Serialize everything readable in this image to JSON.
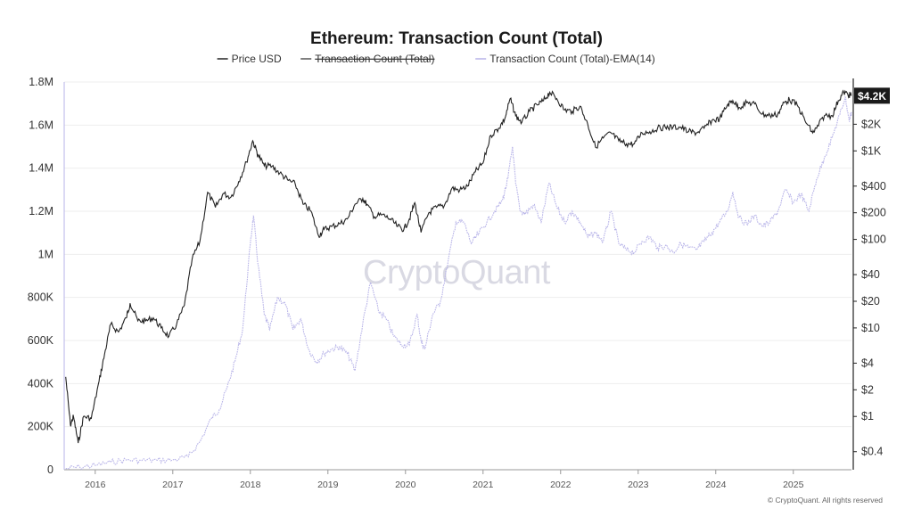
{
  "chart_data": {
    "type": "line",
    "title": "Ethereum: Transaction Count (Total)",
    "legend": [
      {
        "name": "Price USD",
        "color": "#222222",
        "style": "solid",
        "strikethrough": false
      },
      {
        "name": "Transaction Count (Total)",
        "color": "#555555",
        "style": "solid",
        "strikethrough": true
      },
      {
        "name": "Transaction Count (Total)-EMA(14)",
        "color": "#b7b3e8",
        "style": "solid",
        "strikethrough": false
      }
    ],
    "legend_position": "top-center",
    "watermark": "CryptoQuant",
    "copyright": "© CryptoQuant. All rights reserved",
    "current_price_label": "$4.2K",
    "x_axis": {
      "ticks": [
        "2016",
        "2017",
        "2018",
        "2019",
        "2020",
        "2021",
        "2022",
        "2023",
        "2024",
        "2025"
      ],
      "range": [
        2015.6,
        2025.75
      ]
    },
    "y_left": {
      "ticks": [
        {
          "value": 0,
          "label": "0"
        },
        {
          "value": 200000,
          "label": "200K"
        },
        {
          "value": 400000,
          "label": "400K"
        },
        {
          "value": 600000,
          "label": "600K"
        },
        {
          "value": 800000,
          "label": "800K"
        },
        {
          "value": 1000000,
          "label": "1M"
        },
        {
          "value": 1200000,
          "label": "1.2M"
        },
        {
          "value": 1400000,
          "label": "1.4M"
        },
        {
          "value": 1600000,
          "label": "1.6M"
        },
        {
          "value": 1800000,
          "label": "1.8M"
        }
      ],
      "range": [
        0,
        1800000
      ]
    },
    "y_right": {
      "scale": "log",
      "ticks": [
        {
          "value": 0.4,
          "label": "$0.4"
        },
        {
          "value": 1,
          "label": "$1"
        },
        {
          "value": 2,
          "label": "$2"
        },
        {
          "value": 4,
          "label": "$4"
        },
        {
          "value": 10,
          "label": "$10"
        },
        {
          "value": 20,
          "label": "$20"
        },
        {
          "value": 40,
          "label": "$40"
        },
        {
          "value": 100,
          "label": "$100"
        },
        {
          "value": 200,
          "label": "$200"
        },
        {
          "value": 400,
          "label": "$400"
        },
        {
          "value": 1000,
          "label": "$1K"
        },
        {
          "value": 2000,
          "label": "$2K"
        }
      ],
      "range": [
        0.25,
        6000
      ]
    },
    "series": [
      {
        "name": "Transaction Count (Total)-EMA(14)",
        "axis": "left",
        "color": "#b7b3e8",
        "points": [
          [
            2015.62,
            5000
          ],
          [
            2015.8,
            12000
          ],
          [
            2016.0,
            20000
          ],
          [
            2016.2,
            35000
          ],
          [
            2016.4,
            45000
          ],
          [
            2016.6,
            43000
          ],
          [
            2016.8,
            44000
          ],
          [
            2017.0,
            45000
          ],
          [
            2017.2,
            60000
          ],
          [
            2017.35,
            130000
          ],
          [
            2017.5,
            240000
          ],
          [
            2017.6,
            280000
          ],
          [
            2017.7,
            380000
          ],
          [
            2017.8,
            500000
          ],
          [
            2017.9,
            650000
          ],
          [
            2018.0,
            1050000
          ],
          [
            2018.04,
            1180000
          ],
          [
            2018.1,
            950000
          ],
          [
            2018.18,
            720000
          ],
          [
            2018.25,
            650000
          ],
          [
            2018.35,
            800000
          ],
          [
            2018.45,
            770000
          ],
          [
            2018.55,
            650000
          ],
          [
            2018.65,
            700000
          ],
          [
            2018.75,
            560000
          ],
          [
            2018.85,
            500000
          ],
          [
            2018.95,
            540000
          ],
          [
            2019.05,
            560000
          ],
          [
            2019.15,
            570000
          ],
          [
            2019.25,
            540000
          ],
          [
            2019.35,
            460000
          ],
          [
            2019.45,
            680000
          ],
          [
            2019.55,
            870000
          ],
          [
            2019.65,
            740000
          ],
          [
            2019.75,
            700000
          ],
          [
            2019.85,
            620000
          ],
          [
            2019.95,
            580000
          ],
          [
            2020.05,
            580000
          ],
          [
            2020.15,
            720000
          ],
          [
            2020.2,
            600000
          ],
          [
            2020.25,
            560000
          ],
          [
            2020.35,
            720000
          ],
          [
            2020.45,
            780000
          ],
          [
            2020.55,
            970000
          ],
          [
            2020.65,
            1150000
          ],
          [
            2020.75,
            1150000
          ],
          [
            2020.85,
            1050000
          ],
          [
            2020.95,
            1100000
          ],
          [
            2021.05,
            1150000
          ],
          [
            2021.15,
            1200000
          ],
          [
            2021.25,
            1250000
          ],
          [
            2021.32,
            1350000
          ],
          [
            2021.38,
            1500000
          ],
          [
            2021.42,
            1330000
          ],
          [
            2021.48,
            1200000
          ],
          [
            2021.55,
            1190000
          ],
          [
            2021.65,
            1230000
          ],
          [
            2021.75,
            1150000
          ],
          [
            2021.85,
            1330000
          ],
          [
            2021.95,
            1220000
          ],
          [
            2022.05,
            1150000
          ],
          [
            2022.15,
            1200000
          ],
          [
            2022.25,
            1150000
          ],
          [
            2022.35,
            1080000
          ],
          [
            2022.45,
            1100000
          ],
          [
            2022.55,
            1060000
          ],
          [
            2022.65,
            1200000
          ],
          [
            2022.75,
            1050000
          ],
          [
            2022.85,
            1020000
          ],
          [
            2022.95,
            1010000
          ],
          [
            2023.05,
            1060000
          ],
          [
            2023.15,
            1080000
          ],
          [
            2023.25,
            1030000
          ],
          [
            2023.35,
            1040000
          ],
          [
            2023.45,
            1010000
          ],
          [
            2023.55,
            1050000
          ],
          [
            2023.65,
            1030000
          ],
          [
            2023.75,
            1020000
          ],
          [
            2023.85,
            1060000
          ],
          [
            2023.95,
            1100000
          ],
          [
            2024.05,
            1150000
          ],
          [
            2024.15,
            1200000
          ],
          [
            2024.22,
            1290000
          ],
          [
            2024.3,
            1170000
          ],
          [
            2024.4,
            1140000
          ],
          [
            2024.5,
            1180000
          ],
          [
            2024.6,
            1130000
          ],
          [
            2024.7,
            1150000
          ],
          [
            2024.8,
            1200000
          ],
          [
            2024.9,
            1300000
          ],
          [
            2025.0,
            1240000
          ],
          [
            2025.1,
            1280000
          ],
          [
            2025.2,
            1200000
          ],
          [
            2025.3,
            1350000
          ],
          [
            2025.4,
            1450000
          ],
          [
            2025.5,
            1540000
          ],
          [
            2025.6,
            1650000
          ],
          [
            2025.67,
            1730000
          ],
          [
            2025.72,
            1620000
          ],
          [
            2025.75,
            1660000
          ]
        ]
      },
      {
        "name": "Price USD",
        "axis": "right",
        "color": "#222222",
        "points": [
          [
            2015.62,
            2.8
          ],
          [
            2015.68,
            0.8
          ],
          [
            2015.72,
            1.0
          ],
          [
            2015.78,
            0.5
          ],
          [
            2015.85,
            1.0
          ],
          [
            2015.95,
            0.95
          ],
          [
            2016.05,
            2.5
          ],
          [
            2016.12,
            5
          ],
          [
            2016.2,
            11
          ],
          [
            2016.3,
            9
          ],
          [
            2016.4,
            13
          ],
          [
            2016.45,
            19
          ],
          [
            2016.55,
            12
          ],
          [
            2016.65,
            12
          ],
          [
            2016.75,
            13
          ],
          [
            2016.85,
            10
          ],
          [
            2016.95,
            8
          ],
          [
            2017.05,
            11
          ],
          [
            2017.15,
            18
          ],
          [
            2017.25,
            60
          ],
          [
            2017.35,
            95
          ],
          [
            2017.45,
            340
          ],
          [
            2017.55,
            230
          ],
          [
            2017.65,
            330
          ],
          [
            2017.75,
            300
          ],
          [
            2017.85,
            450
          ],
          [
            2017.95,
            750
          ],
          [
            2018.03,
            1300
          ],
          [
            2018.1,
            900
          ],
          [
            2018.18,
            680
          ],
          [
            2018.28,
            670
          ],
          [
            2018.38,
            560
          ],
          [
            2018.48,
            470
          ],
          [
            2018.58,
            420
          ],
          [
            2018.68,
            250
          ],
          [
            2018.78,
            210
          ],
          [
            2018.88,
            110
          ],
          [
            2018.95,
            130
          ],
          [
            2019.05,
            140
          ],
          [
            2019.15,
            150
          ],
          [
            2019.25,
            170
          ],
          [
            2019.35,
            250
          ],
          [
            2019.45,
            290
          ],
          [
            2019.5,
            250
          ],
          [
            2019.6,
            180
          ],
          [
            2019.7,
            190
          ],
          [
            2019.8,
            170
          ],
          [
            2019.9,
            140
          ],
          [
            2019.98,
            130
          ],
          [
            2020.05,
            170
          ],
          [
            2020.12,
            260
          ],
          [
            2020.2,
            120
          ],
          [
            2020.3,
            200
          ],
          [
            2020.4,
            230
          ],
          [
            2020.5,
            240
          ],
          [
            2020.6,
            380
          ],
          [
            2020.7,
            360
          ],
          [
            2020.8,
            400
          ],
          [
            2020.9,
            580
          ],
          [
            2021.0,
            730
          ],
          [
            2021.1,
            1500
          ],
          [
            2021.2,
            1800
          ],
          [
            2021.28,
            2300
          ],
          [
            2021.35,
            3900
          ],
          [
            2021.42,
            2500
          ],
          [
            2021.5,
            2100
          ],
          [
            2021.6,
            2800
          ],
          [
            2021.7,
            3300
          ],
          [
            2021.78,
            3700
          ],
          [
            2021.86,
            4600
          ],
          [
            2021.95,
            3900
          ],
          [
            2022.05,
            2900
          ],
          [
            2022.15,
            2800
          ],
          [
            2022.25,
            3200
          ],
          [
            2022.35,
            2000
          ],
          [
            2022.45,
            1100
          ],
          [
            2022.55,
            1400
          ],
          [
            2022.65,
            1600
          ],
          [
            2022.75,
            1300
          ],
          [
            2022.85,
            1200
          ],
          [
            2022.95,
            1200
          ],
          [
            2023.05,
            1600
          ],
          [
            2023.15,
            1650
          ],
          [
            2023.25,
            1800
          ],
          [
            2023.35,
            1850
          ],
          [
            2023.45,
            1850
          ],
          [
            2023.55,
            1850
          ],
          [
            2023.65,
            1650
          ],
          [
            2023.75,
            1600
          ],
          [
            2023.85,
            1800
          ],
          [
            2023.95,
            2200
          ],
          [
            2024.05,
            2300
          ],
          [
            2024.15,
            3300
          ],
          [
            2024.22,
            3700
          ],
          [
            2024.3,
            3100
          ],
          [
            2024.4,
            3500
          ],
          [
            2024.5,
            3400
          ],
          [
            2024.6,
            2600
          ],
          [
            2024.7,
            2500
          ],
          [
            2024.8,
            2600
          ],
          [
            2024.88,
            3500
          ],
          [
            2024.95,
            3800
          ],
          [
            2025.05,
            3300
          ],
          [
            2025.15,
            2200
          ],
          [
            2025.25,
            1600
          ],
          [
            2025.3,
            1800
          ],
          [
            2025.4,
            2500
          ],
          [
            2025.5,
            2500
          ],
          [
            2025.58,
            3700
          ],
          [
            2025.65,
            4600
          ],
          [
            2025.72,
            4300
          ],
          [
            2025.75,
            4200
          ]
        ]
      }
    ]
  }
}
